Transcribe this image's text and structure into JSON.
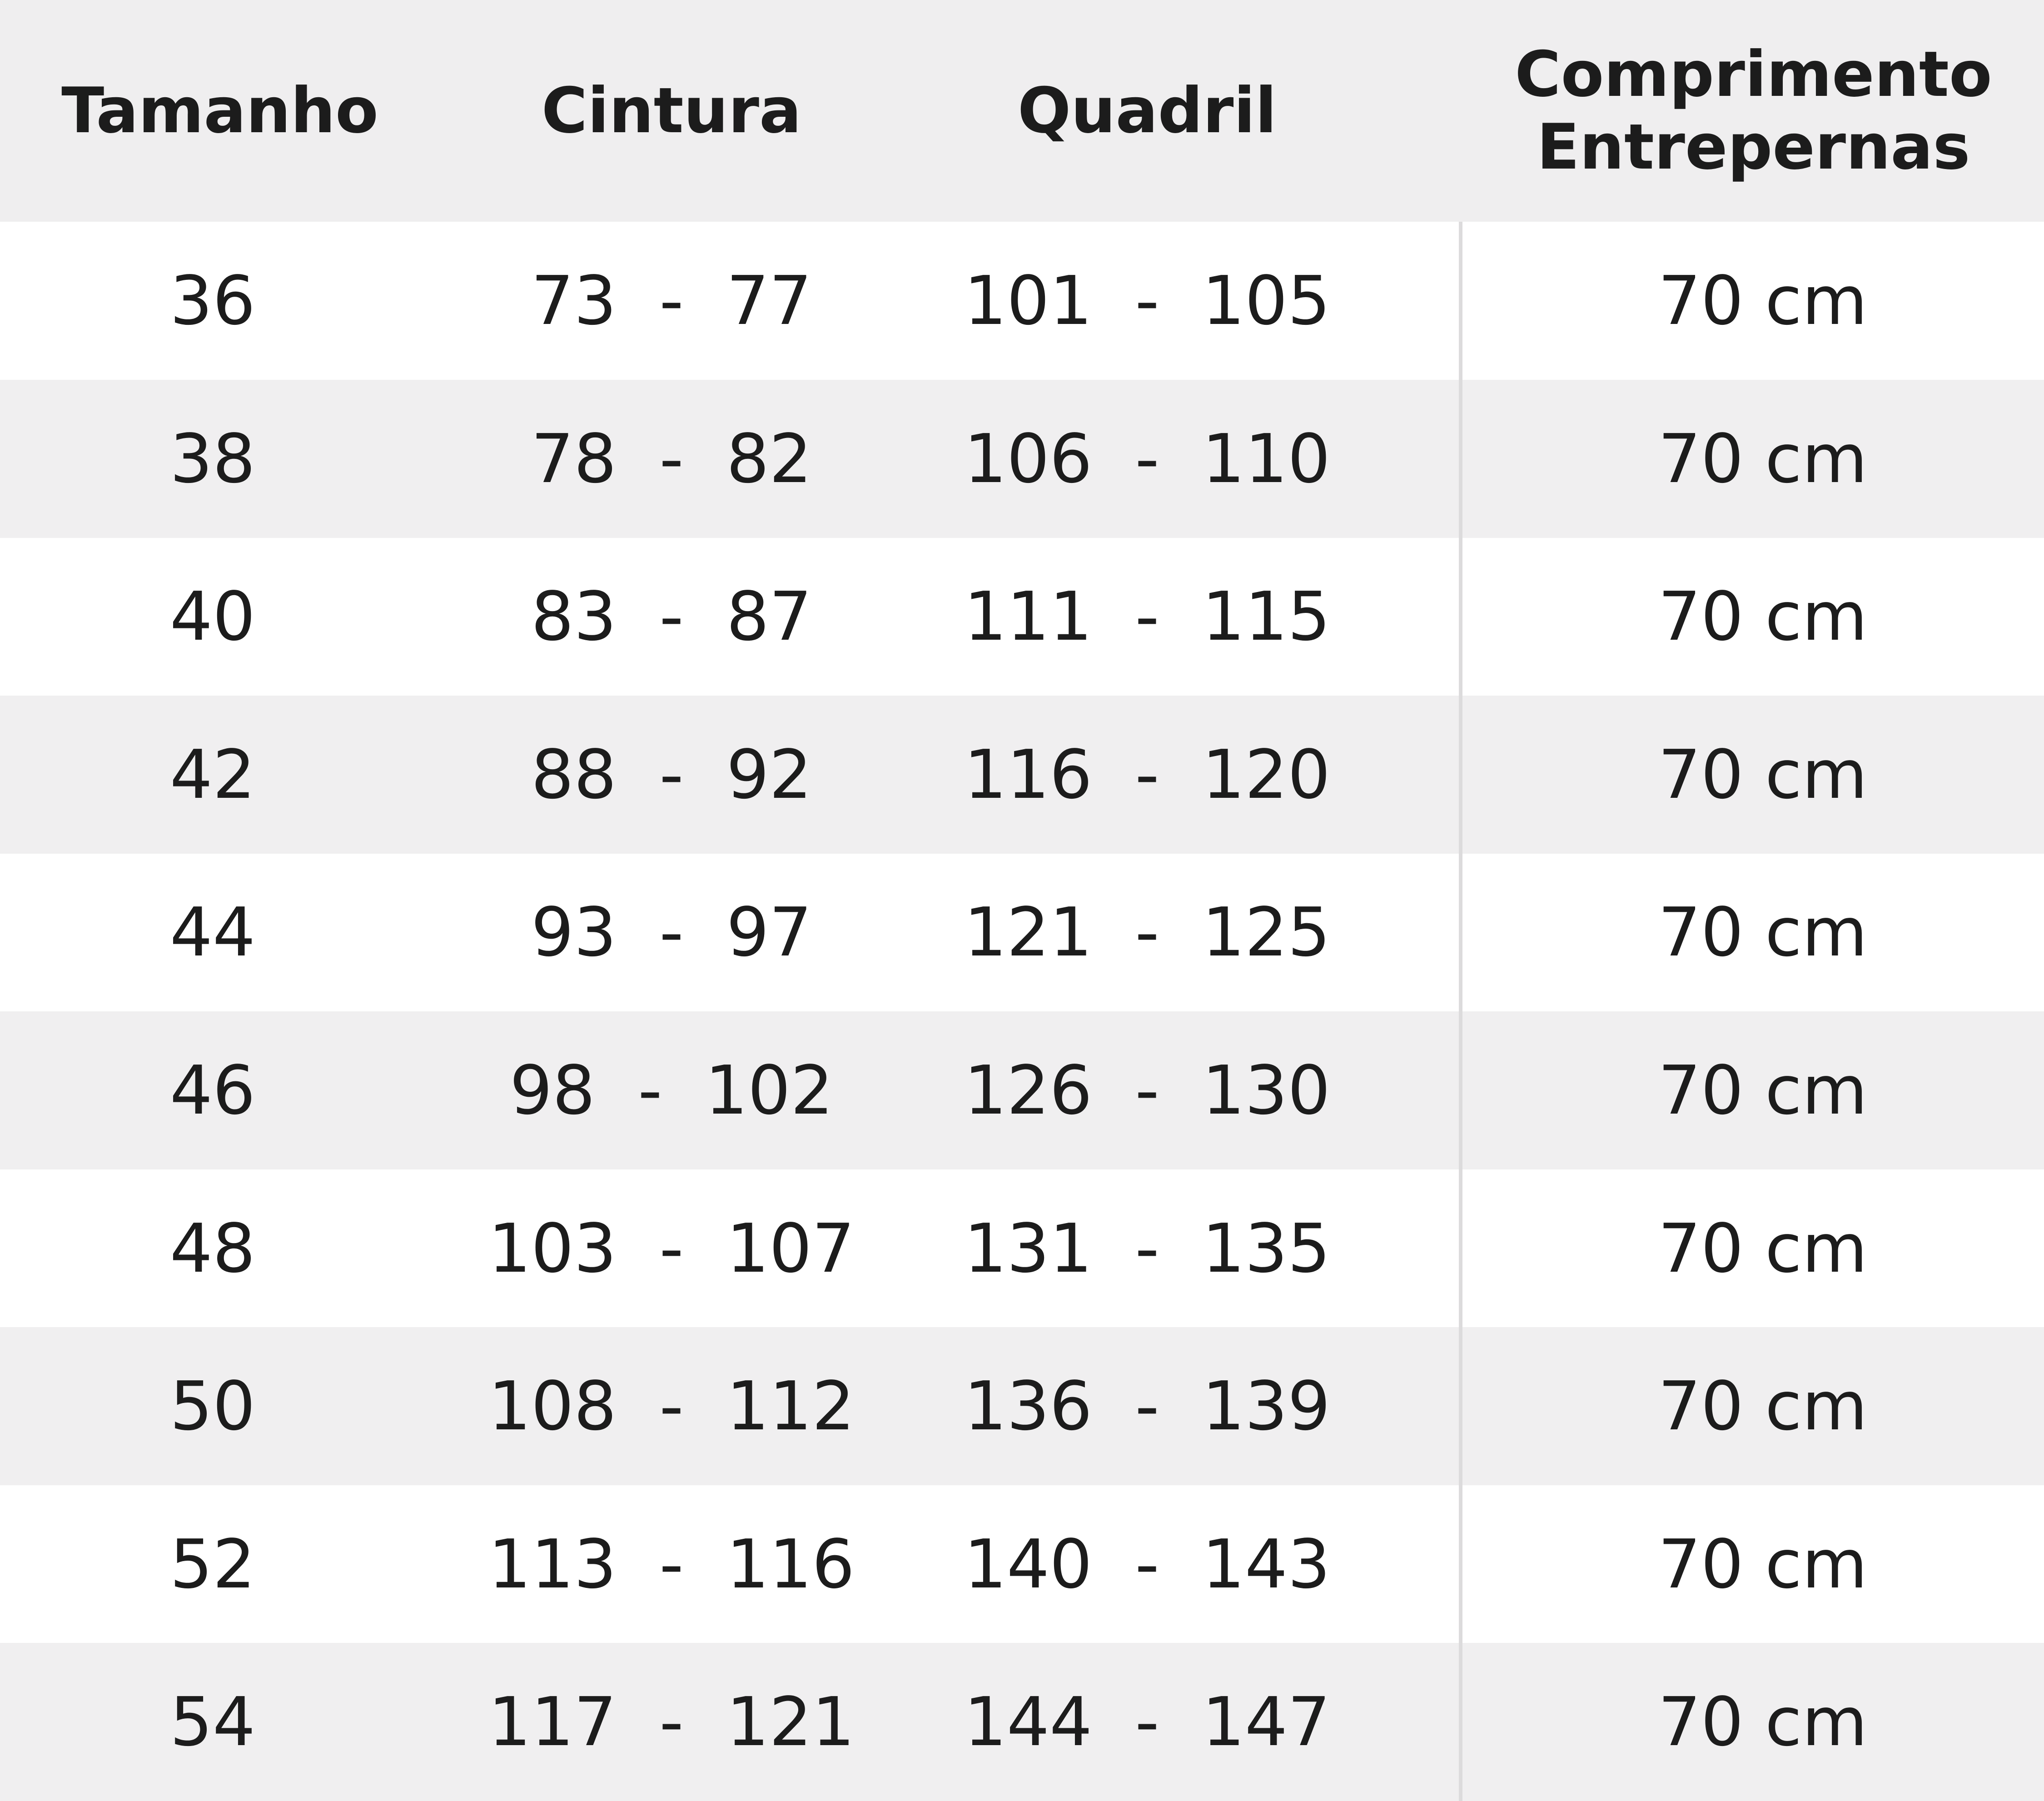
{
  "table": {
    "headers": [
      "Tamanho",
      "Cintura",
      "Quadril",
      "Comprimento\nEntrepernas"
    ],
    "rows": [
      [
        "36",
        "73  -  77",
        "101  -  105",
        "70 cm"
      ],
      [
        "38",
        "78  -  82",
        "106  -  110",
        "70 cm"
      ],
      [
        "40",
        "83  -  87",
        "111  -  115",
        "70 cm"
      ],
      [
        "42",
        "88  -  92",
        "116  -  120",
        "70 cm"
      ],
      [
        "44",
        "93  -  97",
        "121  -  125",
        "70 cm"
      ],
      [
        "46",
        "98  -  102",
        "126  -  130",
        "70 cm"
      ],
      [
        "48",
        "103  -  107",
        "131  -  135",
        "70 cm"
      ],
      [
        "50",
        "108  -  112",
        "136  -  139",
        "70 cm"
      ],
      [
        "52",
        "113  -  116",
        "140  -  143",
        "70 cm"
      ],
      [
        "54",
        "117  -  121",
        "144  -  147",
        "70 cm"
      ]
    ]
  },
  "colors": {
    "header_bg": "#efeeef",
    "stripe_bg": "#f0eff0",
    "text": "#1c1c1c"
  }
}
